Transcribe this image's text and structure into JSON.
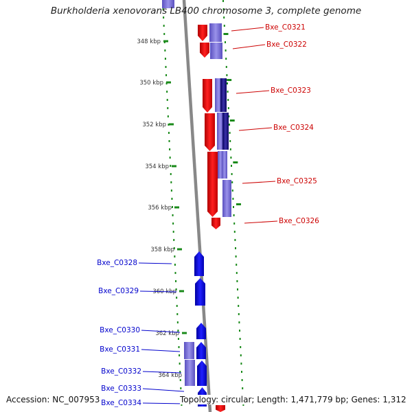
{
  "title": "Burkholderia xenovorans LB400 chromosome 3, complete genome",
  "footer": {
    "accession": "Accession: NC_007953",
    "topology": "Topology: circular; Length: 1,471,779 bp; Genes: 1,312"
  },
  "colors": {
    "forward_gene": "#ff0000",
    "reverse_gene": "#0000ff",
    "forward_label": "#cc0000",
    "reverse_label": "#0000cc",
    "homolog_light": "#7b72d6",
    "homolog_dark": "#1c1080",
    "tick_dots": "#1a8a1a",
    "backbone": "#888888"
  },
  "ticks": [
    "348 kbp",
    "350 kbp",
    "352 kbp",
    "354 kbp",
    "356 kbp",
    "358 kbp",
    "360 kbp",
    "362 kbp",
    "364 kbp"
  ],
  "genes": {
    "right": [
      "Bxe_C0321",
      "Bxe_C0322",
      "Bxe_C0323",
      "Bxe_C0324",
      "Bxe_C0325",
      "Bxe_C0326"
    ],
    "left": [
      "Bxe_C0328",
      "Bxe_C0329",
      "Bxe_C0330",
      "Bxe_C0331",
      "Bxe_C0332",
      "Bxe_C0333",
      "Bxe_C0334"
    ]
  }
}
